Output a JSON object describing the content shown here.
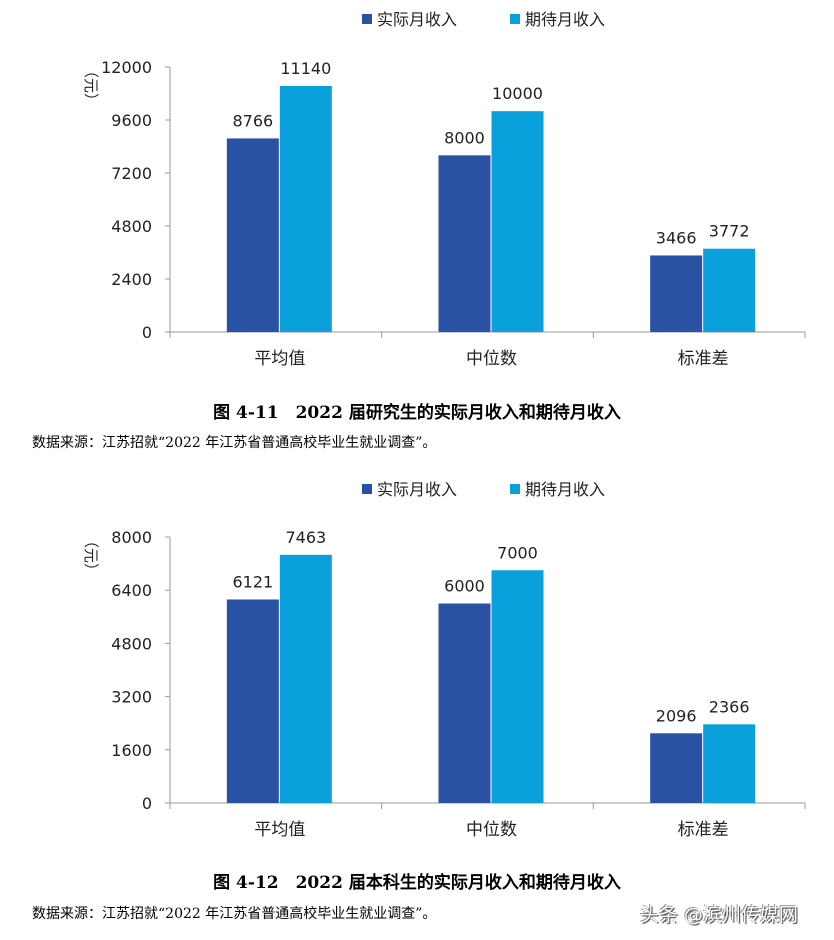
{
  "colors": {
    "actual": "#2A52A4",
    "expected": "#0AA0DC"
  },
  "chart_data": [
    {
      "type": "bar",
      "title": "图 4-11　2022 届研究生的实际月收入和期待月收入",
      "ylabel": "（元）",
      "categories": [
        "平均值",
        "中位数",
        "标准差"
      ],
      "series": [
        {
          "name": "实际月收入",
          "values": [
            8766,
            8000,
            3466
          ]
        },
        {
          "name": "期待月收入",
          "values": [
            11140,
            10000,
            3772
          ]
        }
      ],
      "ylim": [
        0,
        12000
      ],
      "yticks": [
        "0",
        "2400",
        "4800",
        "7200",
        "9600",
        "12000"
      ],
      "legend": "top",
      "grid": false,
      "source": "数据来源：江苏招就“2022 年江苏省普通高校毕业生就业调查”。"
    },
    {
      "type": "bar",
      "title": "图 4-12　2022 届本科生的实际月收入和期待月收入",
      "ylabel": "（元）",
      "categories": [
        "平均值",
        "中位数",
        "标准差"
      ],
      "series": [
        {
          "name": "实际月收入",
          "values": [
            6121,
            6000,
            2096
          ]
        },
        {
          "name": "期待月收入",
          "values": [
            7463,
            7000,
            2366
          ]
        }
      ],
      "ylim": [
        0,
        8000
      ],
      "yticks": [
        "0",
        "1600",
        "3200",
        "4800",
        "6400",
        "8000"
      ],
      "legend": "top",
      "grid": false,
      "source": "数据来源：江苏招就“2022 年江苏省普通高校毕业生就业调查”。"
    }
  ],
  "watermark": "头条 @滨州传媒网"
}
